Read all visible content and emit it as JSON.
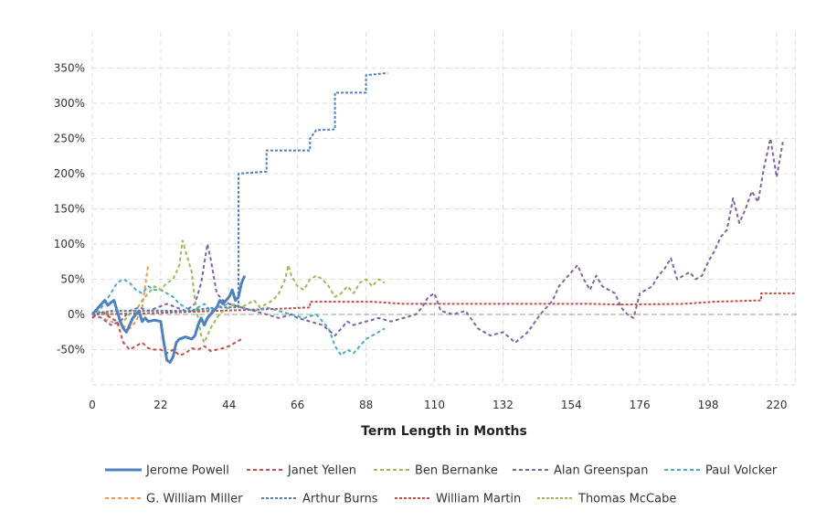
{
  "chart_data": {
    "type": "line",
    "title": "",
    "xlabel": "Term Length in Months",
    "ylabel": "",
    "xlim": [
      0,
      226
    ],
    "ylim": [
      -100,
      400
    ],
    "x_ticks": [
      0,
      22,
      44,
      66,
      88,
      110,
      132,
      154,
      176,
      198,
      220
    ],
    "y_ticks": [
      -50,
      0,
      50,
      100,
      150,
      200,
      250,
      300,
      350
    ],
    "y_tick_labels": [
      "-50%",
      "0%",
      "50%",
      "100%",
      "150%",
      "200%",
      "250%",
      "300%",
      "350%"
    ],
    "grid": true,
    "legend_position": "bottom",
    "series": [
      {
        "name": "Jerome Powell",
        "color": "#4f81bd",
        "style": "solid",
        "points": [
          [
            0,
            0
          ],
          [
            2,
            10
          ],
          [
            3,
            15
          ],
          [
            4,
            20
          ],
          [
            5,
            13
          ],
          [
            6,
            17
          ],
          [
            7,
            20
          ],
          [
            8,
            5
          ],
          [
            9,
            -10
          ],
          [
            10,
            -20
          ],
          [
            11,
            -25
          ],
          [
            12,
            -15
          ],
          [
            13,
            -5
          ],
          [
            14,
            0
          ],
          [
            15,
            5
          ],
          [
            16,
            -10
          ],
          [
            17,
            -5
          ],
          [
            18,
            -10
          ],
          [
            20,
            -8
          ],
          [
            22,
            -10
          ],
          [
            23,
            -40
          ],
          [
            24,
            -65
          ],
          [
            25,
            -68
          ],
          [
            26,
            -60
          ],
          [
            27,
            -40
          ],
          [
            28,
            -35
          ],
          [
            30,
            -32
          ],
          [
            32,
            -35
          ],
          [
            33,
            -30
          ],
          [
            34,
            -15
          ],
          [
            35,
            -5
          ],
          [
            36,
            -15
          ],
          [
            37,
            -5
          ],
          [
            38,
            0
          ],
          [
            40,
            10
          ],
          [
            41,
            20
          ],
          [
            42,
            15
          ],
          [
            43,
            20
          ],
          [
            44,
            25
          ],
          [
            45,
            35
          ],
          [
            46,
            20
          ],
          [
            47,
            25
          ],
          [
            48,
            45
          ],
          [
            49,
            55
          ]
        ]
      },
      {
        "name": "Janet Yellen",
        "color": "#c0504d",
        "style": "dashed",
        "points": [
          [
            0,
            -5
          ],
          [
            3,
            5
          ],
          [
            6,
            -5
          ],
          [
            8,
            -10
          ],
          [
            10,
            -40
          ],
          [
            12,
            -50
          ],
          [
            14,
            -45
          ],
          [
            16,
            -40
          ],
          [
            18,
            -48
          ],
          [
            20,
            -50
          ],
          [
            22,
            -50
          ],
          [
            24,
            -55
          ],
          [
            26,
            -50
          ],
          [
            28,
            -58
          ],
          [
            30,
            -55
          ],
          [
            32,
            -48
          ],
          [
            34,
            -50
          ],
          [
            36,
            -45
          ],
          [
            38,
            -52
          ],
          [
            40,
            -50
          ],
          [
            42,
            -48
          ],
          [
            44,
            -45
          ],
          [
            46,
            -40
          ],
          [
            48,
            -35
          ]
        ]
      },
      {
        "name": "Ben Bernanke",
        "color": "#9bbb59",
        "style": "dashed",
        "points": [
          [
            0,
            -5
          ],
          [
            2,
            5
          ],
          [
            4,
            0
          ],
          [
            6,
            -5
          ],
          [
            8,
            -10
          ],
          [
            10,
            -10
          ],
          [
            12,
            0
          ],
          [
            14,
            5
          ],
          [
            16,
            20
          ],
          [
            18,
            30
          ],
          [
            20,
            40
          ],
          [
            22,
            35
          ],
          [
            24,
            45
          ],
          [
            26,
            50
          ],
          [
            28,
            70
          ],
          [
            29,
            105
          ],
          [
            30,
            90
          ],
          [
            32,
            60
          ],
          [
            33,
            20
          ],
          [
            34,
            -5
          ],
          [
            35,
            -30
          ],
          [
            36,
            -40
          ],
          [
            38,
            -20
          ],
          [
            40,
            -5
          ],
          [
            42,
            5
          ],
          [
            44,
            10
          ],
          [
            46,
            15
          ],
          [
            48,
            10
          ],
          [
            50,
            15
          ],
          [
            52,
            20
          ],
          [
            54,
            10
          ],
          [
            56,
            15
          ],
          [
            58,
            20
          ],
          [
            60,
            30
          ],
          [
            62,
            50
          ],
          [
            63,
            70
          ],
          [
            64,
            55
          ],
          [
            66,
            40
          ],
          [
            68,
            35
          ],
          [
            70,
            50
          ],
          [
            72,
            55
          ],
          [
            74,
            50
          ],
          [
            76,
            40
          ],
          [
            78,
            25
          ],
          [
            80,
            30
          ],
          [
            82,
            40
          ],
          [
            84,
            30
          ],
          [
            86,
            45
          ],
          [
            88,
            50
          ],
          [
            90,
            40
          ],
          [
            92,
            50
          ],
          [
            94,
            45
          ]
        ]
      },
      {
        "name": "Alan Greenspan",
        "color": "#8064a2",
        "style": "dashed",
        "points": [
          [
            0,
            0
          ],
          [
            3,
            -5
          ],
          [
            6,
            -15
          ],
          [
            9,
            -10
          ],
          [
            12,
            5
          ],
          [
            15,
            10
          ],
          [
            18,
            5
          ],
          [
            21,
            10
          ],
          [
            24,
            15
          ],
          [
            27,
            10
          ],
          [
            30,
            5
          ],
          [
            33,
            15
          ],
          [
            35,
            45
          ],
          [
            37,
            100
          ],
          [
            38,
            80
          ],
          [
            40,
            30
          ],
          [
            42,
            20
          ],
          [
            44,
            15
          ],
          [
            48,
            10
          ],
          [
            52,
            5
          ],
          [
            56,
            0
          ],
          [
            60,
            -5
          ],
          [
            64,
            0
          ],
          [
            66,
            -5
          ],
          [
            70,
            -10
          ],
          [
            74,
            -15
          ],
          [
            78,
            -30
          ],
          [
            80,
            -20
          ],
          [
            82,
            -10
          ],
          [
            84,
            -15
          ],
          [
            88,
            -10
          ],
          [
            92,
            -5
          ],
          [
            96,
            -10
          ],
          [
            100,
            -5
          ],
          [
            104,
            0
          ],
          [
            106,
            10
          ],
          [
            108,
            25
          ],
          [
            110,
            30
          ],
          [
            112,
            5
          ],
          [
            116,
            0
          ],
          [
            120,
            5
          ],
          [
            124,
            -20
          ],
          [
            128,
            -30
          ],
          [
            132,
            -25
          ],
          [
            136,
            -40
          ],
          [
            140,
            -25
          ],
          [
            144,
            0
          ],
          [
            148,
            20
          ],
          [
            150,
            40
          ],
          [
            152,
            50
          ],
          [
            154,
            60
          ],
          [
            156,
            70
          ],
          [
            158,
            50
          ],
          [
            160,
            35
          ],
          [
            162,
            55
          ],
          [
            164,
            40
          ],
          [
            166,
            35
          ],
          [
            168,
            30
          ],
          [
            170,
            10
          ],
          [
            172,
            0
          ],
          [
            174,
            -5
          ],
          [
            176,
            30
          ],
          [
            178,
            35
          ],
          [
            180,
            40
          ],
          [
            182,
            55
          ],
          [
            184,
            65
          ],
          [
            186,
            80
          ],
          [
            188,
            50
          ],
          [
            190,
            55
          ],
          [
            192,
            60
          ],
          [
            194,
            50
          ],
          [
            196,
            55
          ],
          [
            198,
            75
          ],
          [
            200,
            90
          ],
          [
            202,
            110
          ],
          [
            204,
            120
          ],
          [
            206,
            165
          ],
          [
            208,
            130
          ],
          [
            210,
            150
          ],
          [
            212,
            175
          ],
          [
            214,
            160
          ],
          [
            216,
            210
          ],
          [
            218,
            250
          ],
          [
            220,
            195
          ],
          [
            222,
            245
          ]
        ]
      },
      {
        "name": "Paul Volcker",
        "color": "#4bacc6",
        "style": "dashed",
        "points": [
          [
            0,
            -5
          ],
          [
            3,
            10
          ],
          [
            6,
            30
          ],
          [
            8,
            45
          ],
          [
            10,
            50
          ],
          [
            12,
            45
          ],
          [
            14,
            35
          ],
          [
            16,
            30
          ],
          [
            18,
            40
          ],
          [
            20,
            35
          ],
          [
            22,
            35
          ],
          [
            24,
            30
          ],
          [
            26,
            25
          ],
          [
            28,
            15
          ],
          [
            30,
            10
          ],
          [
            32,
            5
          ],
          [
            34,
            10
          ],
          [
            36,
            15
          ],
          [
            38,
            5
          ],
          [
            40,
            10
          ],
          [
            44,
            15
          ],
          [
            48,
            10
          ],
          [
            52,
            5
          ],
          [
            56,
            10
          ],
          [
            60,
            5
          ],
          [
            64,
            0
          ],
          [
            68,
            -5
          ],
          [
            72,
            0
          ],
          [
            74,
            -10
          ],
          [
            76,
            -20
          ],
          [
            78,
            -45
          ],
          [
            80,
            -58
          ],
          [
            82,
            -50
          ],
          [
            84,
            -55
          ],
          [
            86,
            -45
          ],
          [
            88,
            -35
          ],
          [
            90,
            -30
          ],
          [
            92,
            -25
          ],
          [
            94,
            -20
          ]
        ]
      },
      {
        "name": "G. William Miller",
        "color": "#f79646",
        "style": "dashed",
        "points": [
          [
            0,
            0
          ],
          [
            3,
            -5
          ],
          [
            6,
            -10
          ],
          [
            9,
            -15
          ],
          [
            12,
            -20
          ],
          [
            14,
            -10
          ],
          [
            16,
            10
          ],
          [
            17,
            40
          ],
          [
            18,
            72
          ]
        ]
      },
      {
        "name": "Arthur Burns",
        "color": "#4f81bd",
        "style": "dotted",
        "points": [
          [
            0,
            0
          ],
          [
            6,
            5
          ],
          [
            12,
            5
          ],
          [
            20,
            5
          ],
          [
            30,
            5
          ],
          [
            40,
            10
          ],
          [
            47,
            10
          ],
          [
            47,
            200
          ],
          [
            56,
            203
          ],
          [
            56,
            233
          ],
          [
            70,
            233
          ],
          [
            70,
            250
          ],
          [
            72,
            262
          ],
          [
            78,
            263
          ],
          [
            78,
            315
          ],
          [
            88,
            315
          ],
          [
            88,
            340
          ],
          [
            95,
            343
          ]
        ]
      },
      {
        "name": "William Martin",
        "color": "#c0504d",
        "style": "dotted",
        "points": [
          [
            0,
            0
          ],
          [
            20,
            2
          ],
          [
            40,
            5
          ],
          [
            60,
            8
          ],
          [
            70,
            10
          ],
          [
            70,
            18
          ],
          [
            80,
            18
          ],
          [
            90,
            18
          ],
          [
            100,
            15
          ],
          [
            120,
            15
          ],
          [
            140,
            15
          ],
          [
            160,
            15
          ],
          [
            170,
            14
          ],
          [
            190,
            15
          ],
          [
            200,
            18
          ],
          [
            215,
            20
          ],
          [
            215,
            30
          ],
          [
            226,
            30
          ]
        ]
      },
      {
        "name": "Thomas McCabe",
        "color": "#9bbb59",
        "style": "dotted",
        "points": [
          [
            0,
            0
          ],
          [
            4,
            3
          ],
          [
            8,
            5
          ],
          [
            12,
            5
          ],
          [
            16,
            5
          ],
          [
            20,
            6
          ],
          [
            24,
            5
          ],
          [
            28,
            5
          ],
          [
            32,
            6
          ],
          [
            36,
            5
          ],
          [
            38,
            5
          ]
        ]
      }
    ]
  }
}
